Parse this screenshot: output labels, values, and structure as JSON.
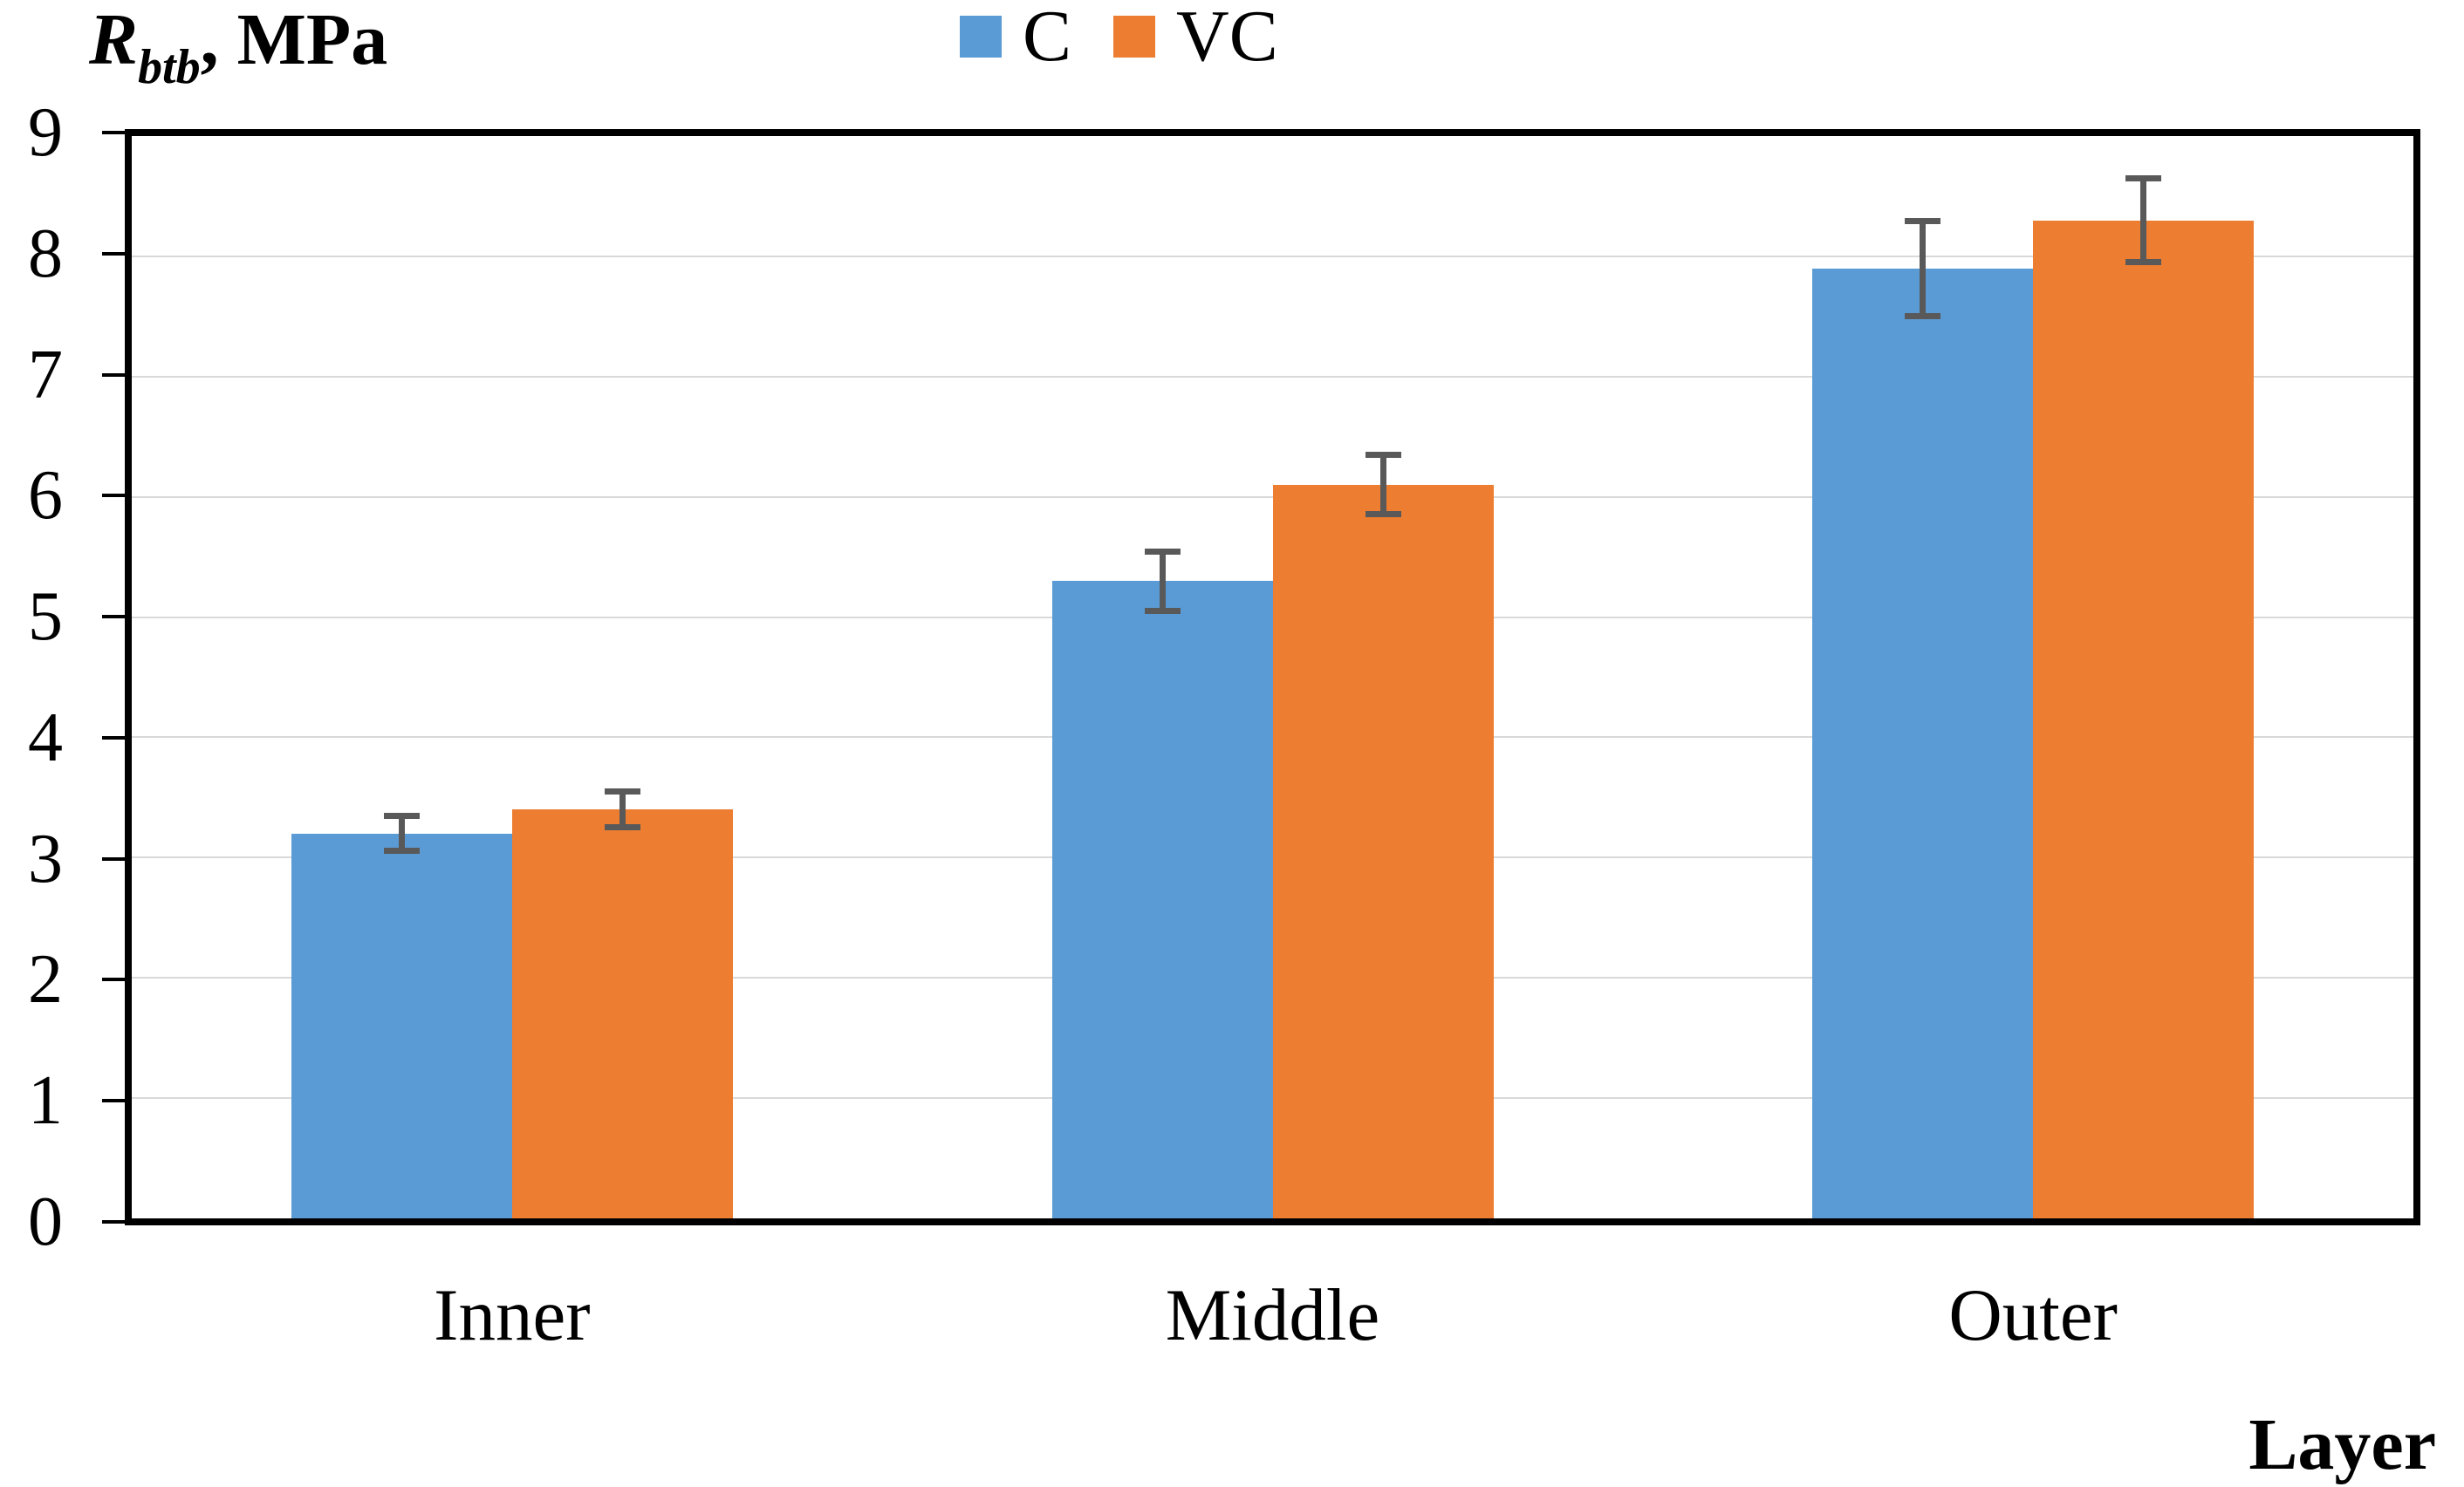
{
  "figure": {
    "y_axis_title": {
      "symbol": "R",
      "subscript": "btb",
      "suffix": ", MPa"
    },
    "x_axis_title": "Layer"
  },
  "chart_data": {
    "type": "bar",
    "ylabel": "R_btb, MPa",
    "xlabel": "Layer",
    "categories": [
      "Inner",
      "Middle",
      "Outer"
    ],
    "series": [
      {
        "name": "C",
        "color": "#5B9BD5",
        "values": [
          3.2,
          5.3,
          7.9
        ],
        "errors": [
          0.15,
          0.25,
          0.4
        ]
      },
      {
        "name": "VC",
        "color": "#ED7D31",
        "values": [
          3.4,
          6.1,
          8.3
        ],
        "errors": [
          0.15,
          0.25,
          0.35
        ]
      }
    ],
    "ylim": [
      0,
      9
    ],
    "yticks": [
      0,
      1,
      2,
      3,
      4,
      5,
      6,
      7,
      8,
      9
    ],
    "grid": true,
    "legend_position": "top-center",
    "error_bars": true,
    "colors": {
      "error_bar": "#595959",
      "gridline": "#D9D9D9",
      "axis": "#000000",
      "text": "#000000"
    }
  }
}
